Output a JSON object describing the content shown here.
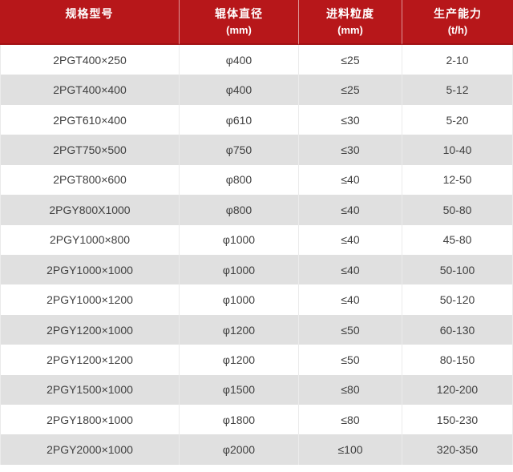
{
  "chart_data": {
    "type": "table",
    "columns": [
      {
        "label": "规格型号",
        "unit": ""
      },
      {
        "label": "辊体直径",
        "unit": "(mm)"
      },
      {
        "label": "进料粒度",
        "unit": "(mm)"
      },
      {
        "label": "生产能力",
        "unit": "(t/h)"
      }
    ],
    "rows": [
      [
        "2PGT400×250",
        "φ400",
        "≤25",
        "2-10"
      ],
      [
        "2PGT400×400",
        "φ400",
        "≤25",
        "5-12"
      ],
      [
        "2PGT610×400",
        "φ610",
        "≤30",
        "5-20"
      ],
      [
        "2PGT750×500",
        "φ750",
        "≤30",
        "10-40"
      ],
      [
        "2PGT800×600",
        "φ800",
        "≤40",
        "12-50"
      ],
      [
        "2PGY800X1000",
        "φ800",
        "≤40",
        "50-80"
      ],
      [
        "2PGY1000×800",
        "φ1000",
        "≤40",
        "45-80"
      ],
      [
        "2PGY1000×1000",
        "φ1000",
        "≤40",
        "50-100"
      ],
      [
        "2PGY1000×1200",
        "φ1000",
        "≤40",
        "50-120"
      ],
      [
        "2PGY1200×1000",
        "φ1200",
        "≤50",
        "60-130"
      ],
      [
        "2PGY1200×1200",
        "φ1200",
        "≤50",
        "80-150"
      ],
      [
        "2PGY1500×1000",
        "φ1500",
        "≤80",
        "120-200"
      ],
      [
        "2PGY1800×1000",
        "φ1800",
        "≤80",
        "150-230"
      ],
      [
        "2PGY2000×1000",
        "φ2000",
        "≤100",
        "320-350"
      ]
    ]
  },
  "colors": {
    "header_bg": "#b7171a",
    "header_text": "#ffffff",
    "header_divider": "rgba(255,255,255,0.55)",
    "header_bottom": "#a21114",
    "row_bg": "#ffffff",
    "row_alt_bg": "#e0e0e0",
    "cell_text": "#404040",
    "cell_border": "#ebebeb"
  }
}
